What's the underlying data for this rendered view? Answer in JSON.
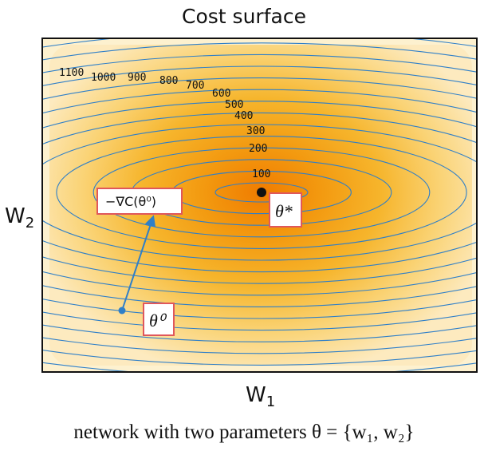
{
  "title": "Cost surface",
  "caption": "network with two parameters θ = {w₁, w₂}",
  "axes": {
    "x_label": "W",
    "x_sub": "1",
    "y_label": "W",
    "y_sub": "2"
  },
  "contour_levels": [
    "100",
    "200",
    "300",
    "400",
    "500",
    "600",
    "700",
    "800",
    "900",
    "1000",
    "1100"
  ],
  "labels": {
    "gradient": "−∇C(θ⁰)",
    "optimum": "θ*",
    "start": "θ⁰"
  },
  "colors": {
    "contour": "#2f7fc8",
    "arrow": "#2f7fc8",
    "box_border": "#e0575b",
    "frame": "#111111"
  }
}
